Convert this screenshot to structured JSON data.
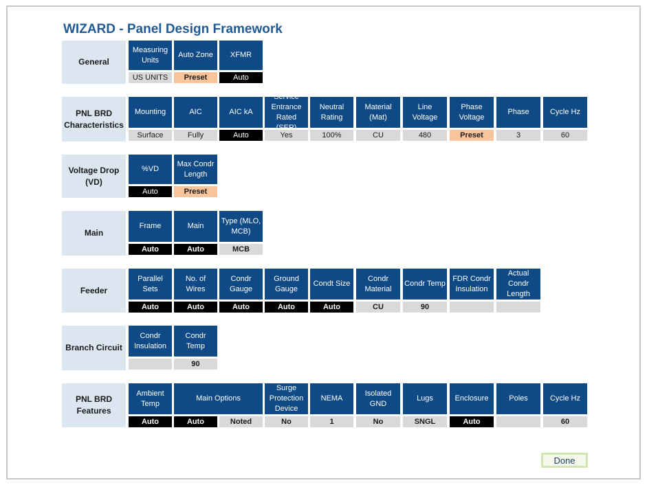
{
  "title": "WIZARD - Panel Design Framework",
  "done_label": "Done",
  "sections": {
    "general": {
      "label": "General",
      "columns": [
        {
          "header": "Measuring Units",
          "value": "US UNITS"
        },
        {
          "header": "Auto Zone",
          "value": "Preset"
        },
        {
          "header": "XFMR",
          "value": "Auto"
        }
      ]
    },
    "pnl_brd_characteristics": {
      "label": "PNL BRD Characteristics",
      "columns": [
        {
          "header": "Mounting",
          "value": "Surface"
        },
        {
          "header": "AIC",
          "value": "Fully"
        },
        {
          "header": "AIC kA",
          "value": "Auto"
        },
        {
          "header": "Service Entrance Rated (SER)",
          "value": "Yes"
        },
        {
          "header": "Neutral Rating",
          "value": "100%"
        },
        {
          "header": "Material (Mat)",
          "value": "CU"
        },
        {
          "header": "Line Voltage",
          "value": "480"
        },
        {
          "header": "Phase Voltage",
          "value": "Preset"
        },
        {
          "header": "Phase",
          "value": "3"
        },
        {
          "header": "Cycle Hz",
          "value": "60"
        }
      ]
    },
    "voltage_drop": {
      "label": "Voltage Drop (VD)",
      "columns": [
        {
          "header": "%VD",
          "value": "Auto"
        },
        {
          "header": "Max Condr Length",
          "value": "Preset"
        }
      ]
    },
    "main": {
      "label": "Main",
      "columns": [
        {
          "header": "Frame",
          "value": "Auto"
        },
        {
          "header": "Main",
          "value": "Auto"
        },
        {
          "header": "Type (MLO, MCB)",
          "value": "MCB"
        }
      ]
    },
    "feeder": {
      "label": "Feeder",
      "columns": [
        {
          "header": "Parallel Sets",
          "value": "Auto"
        },
        {
          "header": "No. of Wires",
          "value": "Auto"
        },
        {
          "header": "Condr Gauge",
          "value": "Auto"
        },
        {
          "header": "Ground Gauge",
          "value": "Auto"
        },
        {
          "header": "Condt Size",
          "value": "Auto"
        },
        {
          "header": "Condr Material",
          "value": "CU"
        },
        {
          "header": "Condr Temp",
          "value": "90"
        },
        {
          "header": "FDR Condr Insulation",
          "value": ""
        },
        {
          "header": "Actual Condr Length",
          "value": ""
        }
      ]
    },
    "branch_circuit": {
      "label": "Branch Circuit",
      "columns": [
        {
          "header": "Condr Insulation",
          "value": ""
        },
        {
          "header": "Condr Temp",
          "value": "90"
        }
      ]
    },
    "pnl_brd_features": {
      "label": "PNL BRD Features",
      "columns": [
        {
          "header": "Ambient Temp",
          "value": "Auto"
        },
        {
          "header": "Main Options",
          "value": "Auto"
        },
        {
          "header": "",
          "value": "Noted"
        },
        {
          "header": "Surge Protection Device",
          "value": "No"
        },
        {
          "header": "NEMA",
          "value": "1"
        },
        {
          "header": "Isolated GND",
          "value": "No"
        },
        {
          "header": "Lugs",
          "value": "SNGL"
        },
        {
          "header": "Enclosure",
          "value": "Auto"
        },
        {
          "header": "Poles",
          "value": ""
        },
        {
          "header": "Cycle Hz",
          "value": "60"
        }
      ]
    }
  },
  "colors": {
    "header_blue": "#0f4a86",
    "label_bg": "#dce6f1",
    "value_gray": "#d9d9d9",
    "value_black": "#000000",
    "value_preset": "#f9c49a",
    "title_blue": "#1f5a96"
  }
}
